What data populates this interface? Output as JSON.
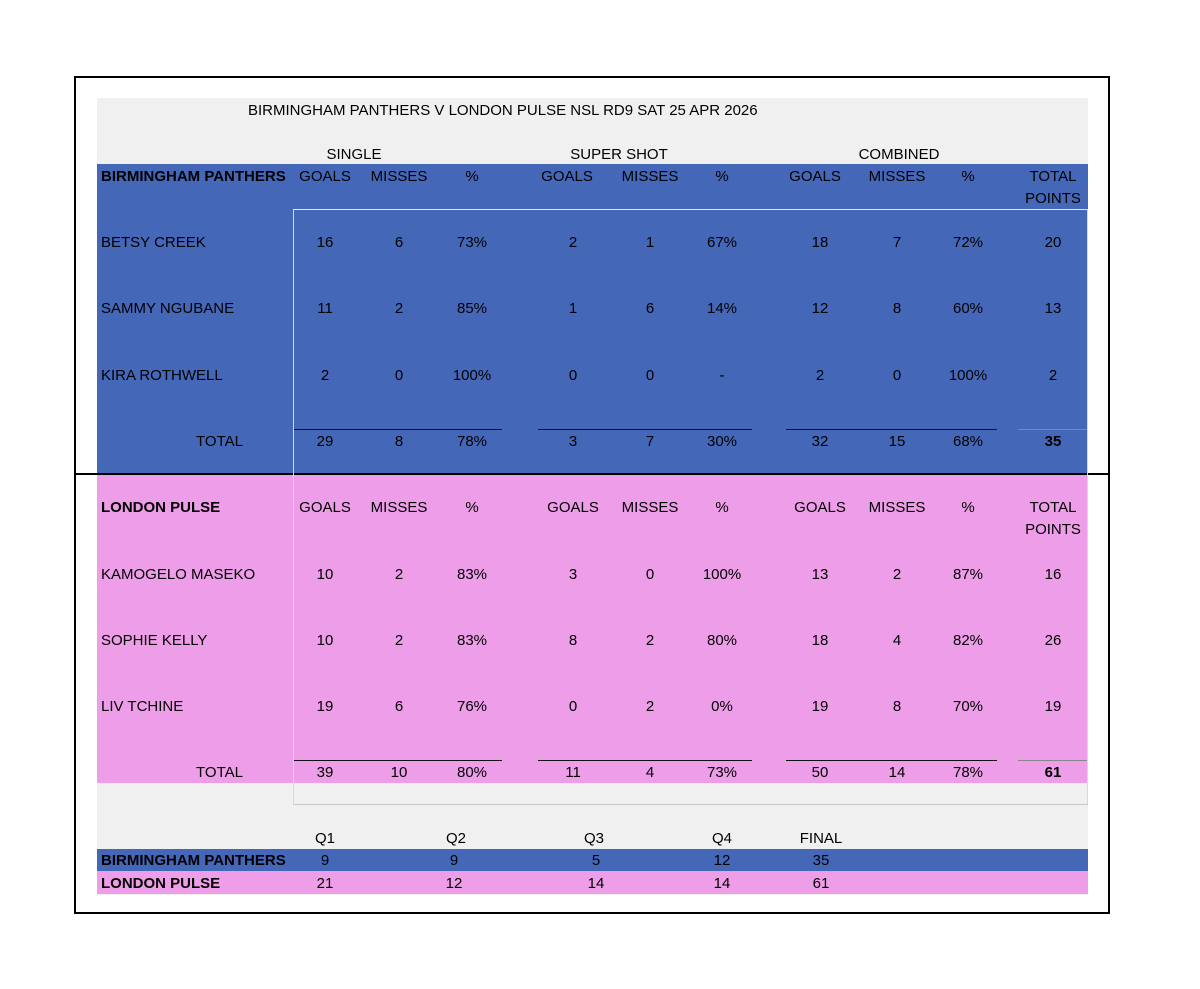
{
  "title": "BIRMINGHAM PANTHERS V LONDON PULSE NSL RD9 SAT 25 APR 2026",
  "groups": [
    "SINGLE",
    "SUPER SHOT",
    "COMBINED"
  ],
  "headers": [
    "GOALS",
    "MISSES",
    "%",
    "GOALS",
    "MISSES",
    "%",
    "GOALS",
    "MISSES",
    "%"
  ],
  "total_points_header": [
    "TOTAL",
    "POINTS"
  ],
  "teams": [
    {
      "name": "BIRMINGHAM PANTHERS",
      "color": "#4567b8",
      "players": [
        {
          "name": "BETSY CREEK",
          "values": [
            "16",
            "6",
            "73%",
            "2",
            "1",
            "67%",
            "18",
            "7",
            "72%",
            "20"
          ]
        },
        {
          "name": "SAMMY NGUBANE",
          "values": [
            "11",
            "2",
            "85%",
            "1",
            "6",
            "14%",
            "12",
            "8",
            "60%",
            "13"
          ]
        },
        {
          "name": "KIRA ROTHWELL",
          "values": [
            "2",
            "0",
            "100%",
            "0",
            "0",
            "-",
            "2",
            "0",
            "100%",
            "2"
          ]
        }
      ],
      "total_label": "TOTAL",
      "total": [
        "29",
        "8",
        "78%",
        "3",
        "7",
        "30%",
        "32",
        "15",
        "68%",
        "35"
      ]
    },
    {
      "name": "LONDON PULSE",
      "color": "#ee9de8",
      "players": [
        {
          "name": "KAMOGELO MASEKO",
          "values": [
            "10",
            "2",
            "83%",
            "3",
            "0",
            "100%",
            "13",
            "2",
            "87%",
            "16"
          ]
        },
        {
          "name": "SOPHIE KELLY",
          "values": [
            "10",
            "2",
            "83%",
            "8",
            "2",
            "80%",
            "18",
            "4",
            "82%",
            "26"
          ]
        },
        {
          "name": "LIV TCHINE",
          "values": [
            "19",
            "6",
            "76%",
            "0",
            "2",
            "0%",
            "19",
            "8",
            "70%",
            "19"
          ]
        }
      ],
      "total_label": "TOTAL",
      "total": [
        "39",
        "10",
        "80%",
        "11",
        "4",
        "73%",
        "50",
        "14",
        "78%",
        "61"
      ]
    }
  ],
  "quarters": {
    "headers": [
      "Q1",
      "Q2",
      "Q3",
      "Q4",
      "FINAL"
    ],
    "rows": [
      {
        "team": "BIRMINGHAM PANTHERS",
        "values": [
          "9",
          "9",
          "5",
          "12",
          "35"
        ]
      },
      {
        "team": "LONDON PULSE",
        "values": [
          "21",
          "12",
          "14",
          "14",
          "61"
        ]
      }
    ]
  }
}
